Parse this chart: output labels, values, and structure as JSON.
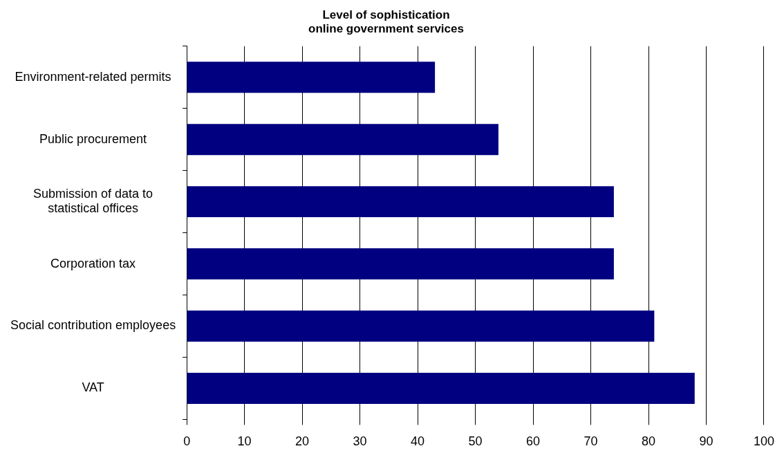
{
  "chart_data": {
    "type": "bar",
    "orientation": "horizontal",
    "title": "Level of sophistication\nonline government services",
    "categories": [
      "Environment-related permits",
      "Public procurement",
      "Submission of data to statistical offices",
      "Corporation tax",
      "Social contribution employees",
      "VAT"
    ],
    "values": [
      43,
      54,
      74,
      74,
      81,
      88
    ],
    "color": "#000080",
    "xlim": [
      0,
      100
    ],
    "xticks": [
      0,
      10,
      20,
      30,
      40,
      50,
      60,
      70,
      80,
      90,
      100
    ],
    "grid": "x",
    "legend": false
  }
}
